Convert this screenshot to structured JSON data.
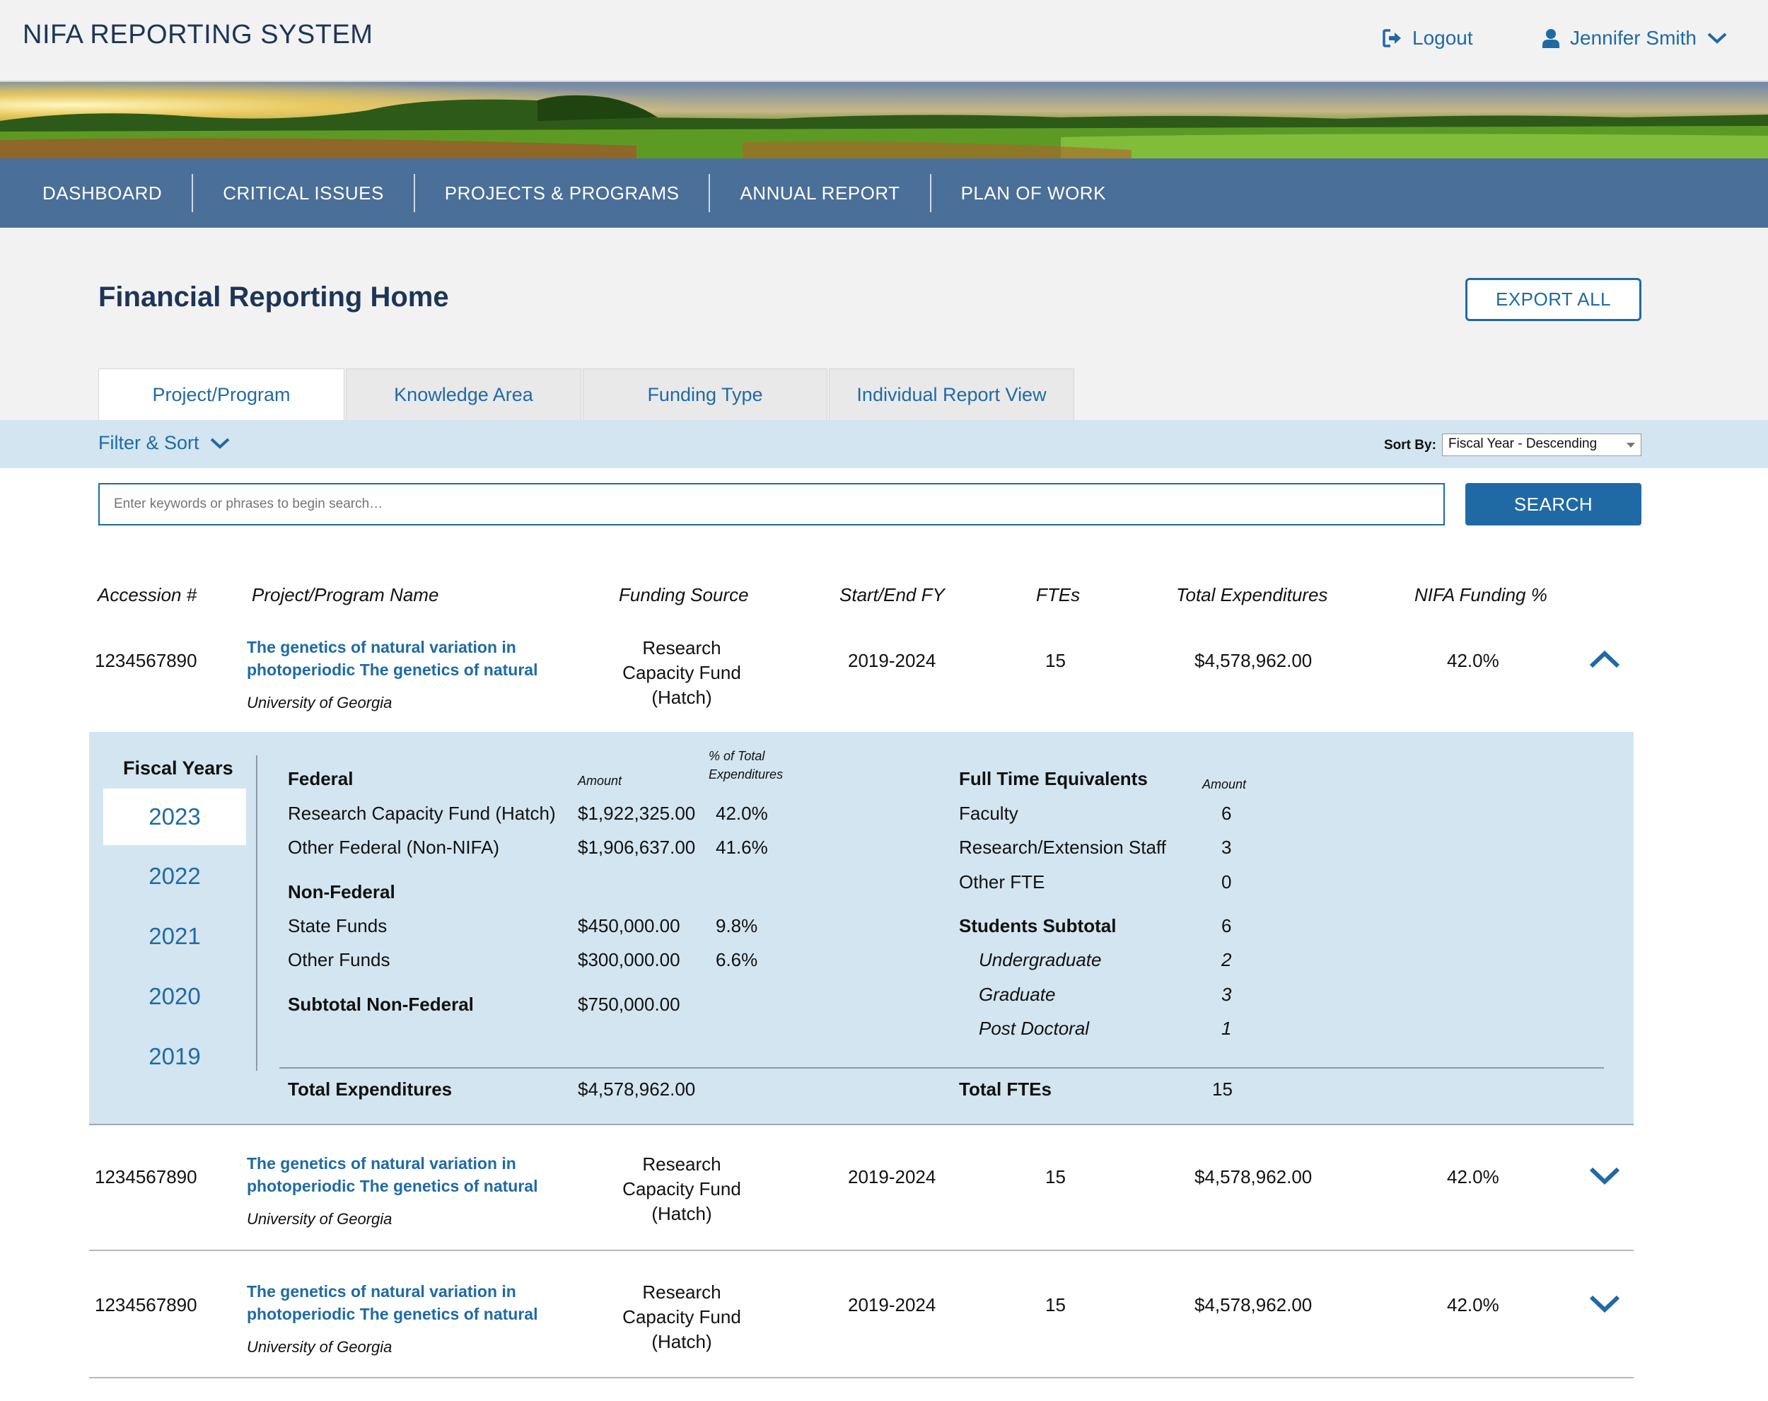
{
  "header": {
    "app_title": "NIFA REPORTING SYSTEM",
    "logout_label": "Logout",
    "user_name": "Jennifer Smith"
  },
  "nav": {
    "items": [
      "DASHBOARD",
      "CRITICAL ISSUES",
      "PROJECTS & PROGRAMS",
      "ANNUAL REPORT",
      "PLAN OF WORK"
    ]
  },
  "page": {
    "title": "Financial Reporting Home",
    "export_label": "EXPORT ALL"
  },
  "tabs": [
    {
      "label": "Project/Program",
      "active": true
    },
    {
      "label": "Knowledge Area",
      "active": false
    },
    {
      "label": "Funding Type",
      "active": false
    },
    {
      "label": "Individual Report View",
      "active": false
    }
  ],
  "filter": {
    "toggle_label": "Filter & Sort",
    "sort_label": "Sort By:",
    "sort_value": "Fiscal Year - Descending"
  },
  "search": {
    "placeholder": "Enter keywords or phrases to begin search…",
    "button_label": "SEARCH"
  },
  "table": {
    "headers": [
      "Accession #",
      "Project/Program Name",
      "Funding Source",
      "Start/End FY",
      "FTEs",
      "Total Expenditures",
      "NIFA Funding %"
    ],
    "rows": [
      {
        "accession": "1234567890",
        "name_line1": "The genetics of natural variation in",
        "name_line2": "photoperiodic The genetics of natural",
        "university": "University of Georgia",
        "fund_line1": "Research",
        "fund_line2": "Capacity Fund",
        "fund_line3": "(Hatch)",
        "fy": "2019-2024",
        "ftes": "15",
        "total": "$4,578,962.00",
        "nifa_pct": "42.0%",
        "expanded": true
      },
      {
        "accession": "1234567890",
        "name_line1": "The genetics of natural variation in",
        "name_line2": "photoperiodic The genetics of natural",
        "university": "University of Georgia",
        "fund_line1": "Research",
        "fund_line2": "Capacity Fund",
        "fund_line3": "(Hatch)",
        "fy": "2019-2024",
        "ftes": "15",
        "total": "$4,578,962.00",
        "nifa_pct": "42.0%",
        "expanded": false
      },
      {
        "accession": "1234567890",
        "name_line1": "The genetics of natural variation in",
        "name_line2": "photoperiodic The genetics of natural",
        "university": "University of Georgia",
        "fund_line1": "Research",
        "fund_line2": "Capacity Fund",
        "fund_line3": "(Hatch)",
        "fy": "2019-2024",
        "ftes": "15",
        "total": "$4,578,962.00",
        "nifa_pct": "42.0%",
        "expanded": false
      }
    ]
  },
  "detail": {
    "fiscal_years_title": "Fiscal Years",
    "years": [
      "2023",
      "2022",
      "2021",
      "2020",
      "2019"
    ],
    "selected_year": "2023",
    "federal_title": "Federal",
    "amount_header": "Amount",
    "pct_header_line1": "% of Total",
    "pct_header_line2": "Expenditures",
    "federal_items": [
      {
        "label": "Research Capacity Fund (Hatch)",
        "amount": "$1,922,325.00",
        "pct": "42.0%"
      },
      {
        "label": "Other Federal (Non-NIFA)",
        "amount": "$1,906,637.00",
        "pct": "41.6%"
      }
    ],
    "nonfederal_title": "Non-Federal",
    "nonfederal_items": [
      {
        "label": "State Funds",
        "amount": "$450,000.00",
        "pct": "9.8%"
      },
      {
        "label": "Other Funds",
        "amount": "$300,000.00",
        "pct": "6.6%"
      }
    ],
    "subtotal_label": "Subtotal Non-Federal",
    "subtotal_amount": "$750,000.00",
    "total_label": "Total Expenditures",
    "total_amount": "$4,578,962.00",
    "fte_title": "Full Time Equivalents",
    "fte_amount_header": "Amount",
    "fte_items": [
      {
        "label": "Faculty",
        "value": "6"
      },
      {
        "label": "Research/Extension Staff",
        "value": "3"
      },
      {
        "label": "Other FTE",
        "value": "0"
      }
    ],
    "students_label": "Students Subtotal",
    "students_value": "6",
    "student_items": [
      {
        "label": "Undergraduate",
        "value": "2"
      },
      {
        "label": "Graduate",
        "value": "3"
      },
      {
        "label": "Post Doctoral",
        "value": "1"
      }
    ],
    "total_fte_label": "Total FTEs",
    "total_fte_value": "15"
  },
  "colors": {
    "primary": "#1f6aa5",
    "title": "#1d3557",
    "nav_bg": "#4a6f99",
    "panel_bg": "#d3e5f1",
    "page_bg": "#f2f2f2"
  }
}
